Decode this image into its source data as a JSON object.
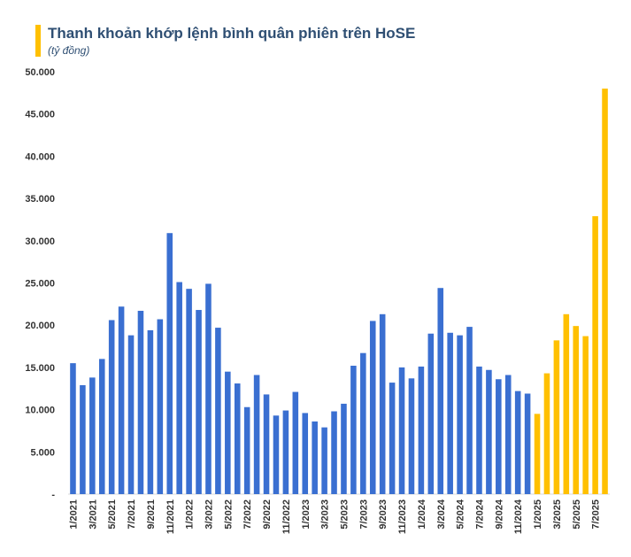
{
  "chart_data": {
    "type": "bar",
    "title": "Thanh khoản khớp lệnh bình quân phiên trên HoSE",
    "subtitle": "(tỷ đồng)",
    "xlabel": "",
    "ylabel": "",
    "ylim": [
      0,
      50000
    ],
    "y_ticks": [
      0,
      5000,
      10000,
      15000,
      20000,
      25000,
      30000,
      35000,
      40000,
      45000,
      50000
    ],
    "y_tick_labels": [
      "-",
      "5.000",
      "10.000",
      "15.000",
      "20.000",
      "25.000",
      "30.000",
      "35.000",
      "40.000",
      "45.000",
      "50.000"
    ],
    "grid": false,
    "colors": {
      "base": "#3a6fd1",
      "highlight": "#ffc000"
    },
    "categories": [
      "1/2021",
      "2/2021",
      "3/2021",
      "4/2021",
      "5/2021",
      "6/2021",
      "7/2021",
      "8/2021",
      "9/2021",
      "10/2021",
      "11/2021",
      "12/2021",
      "1/2022",
      "2/2022",
      "3/2022",
      "4/2022",
      "5/2022",
      "6/2022",
      "7/2022",
      "8/2022",
      "9/2022",
      "10/2022",
      "11/2022",
      "12/2022",
      "1/2023",
      "2/2023",
      "3/2023",
      "4/2023",
      "5/2023",
      "6/2023",
      "7/2023",
      "8/2023",
      "9/2023",
      "10/2023",
      "11/2023",
      "12/2023",
      "1/2024",
      "2/2024",
      "3/2024",
      "4/2024",
      "5/2024",
      "6/2024",
      "7/2024",
      "8/2024",
      "9/2024",
      "10/2024",
      "11/2024",
      "12/2024",
      "1/2025",
      "2/2025",
      "3/2025",
      "4/2025",
      "5/2025",
      "6/2025",
      "7/2025",
      "8/2025"
    ],
    "visible_x_labels": [
      "1/2021",
      "3/2021",
      "5/2021",
      "7/2021",
      "9/2021",
      "11/2021",
      "1/2022",
      "3/2022",
      "5/2022",
      "7/2022",
      "9/2022",
      "11/2022",
      "1/2023",
      "3/2023",
      "5/2023",
      "7/2023",
      "9/2023",
      "11/2023",
      "1/2024",
      "3/2024",
      "5/2024",
      "7/2024",
      "9/2024",
      "11/2024",
      "1/2025",
      "3/2025",
      "5/2025",
      "7/2025"
    ],
    "values": [
      15500,
      12900,
      13800,
      16000,
      20600,
      22200,
      18800,
      21700,
      19400,
      20700,
      30900,
      25100,
      24300,
      21800,
      24900,
      19700,
      14500,
      13100,
      10300,
      14100,
      11800,
      9300,
      9900,
      12100,
      9600,
      8600,
      7900,
      9800,
      10700,
      15200,
      16700,
      20500,
      21300,
      13200,
      15000,
      13700,
      15100,
      19000,
      24400,
      19100,
      18800,
      19800,
      15100,
      14700,
      13600,
      14100,
      12200,
      11900,
      9500,
      14300,
      18200,
      21300,
      19900,
      18700,
      32900,
      48000
    ],
    "highlight_from_index": 48
  }
}
